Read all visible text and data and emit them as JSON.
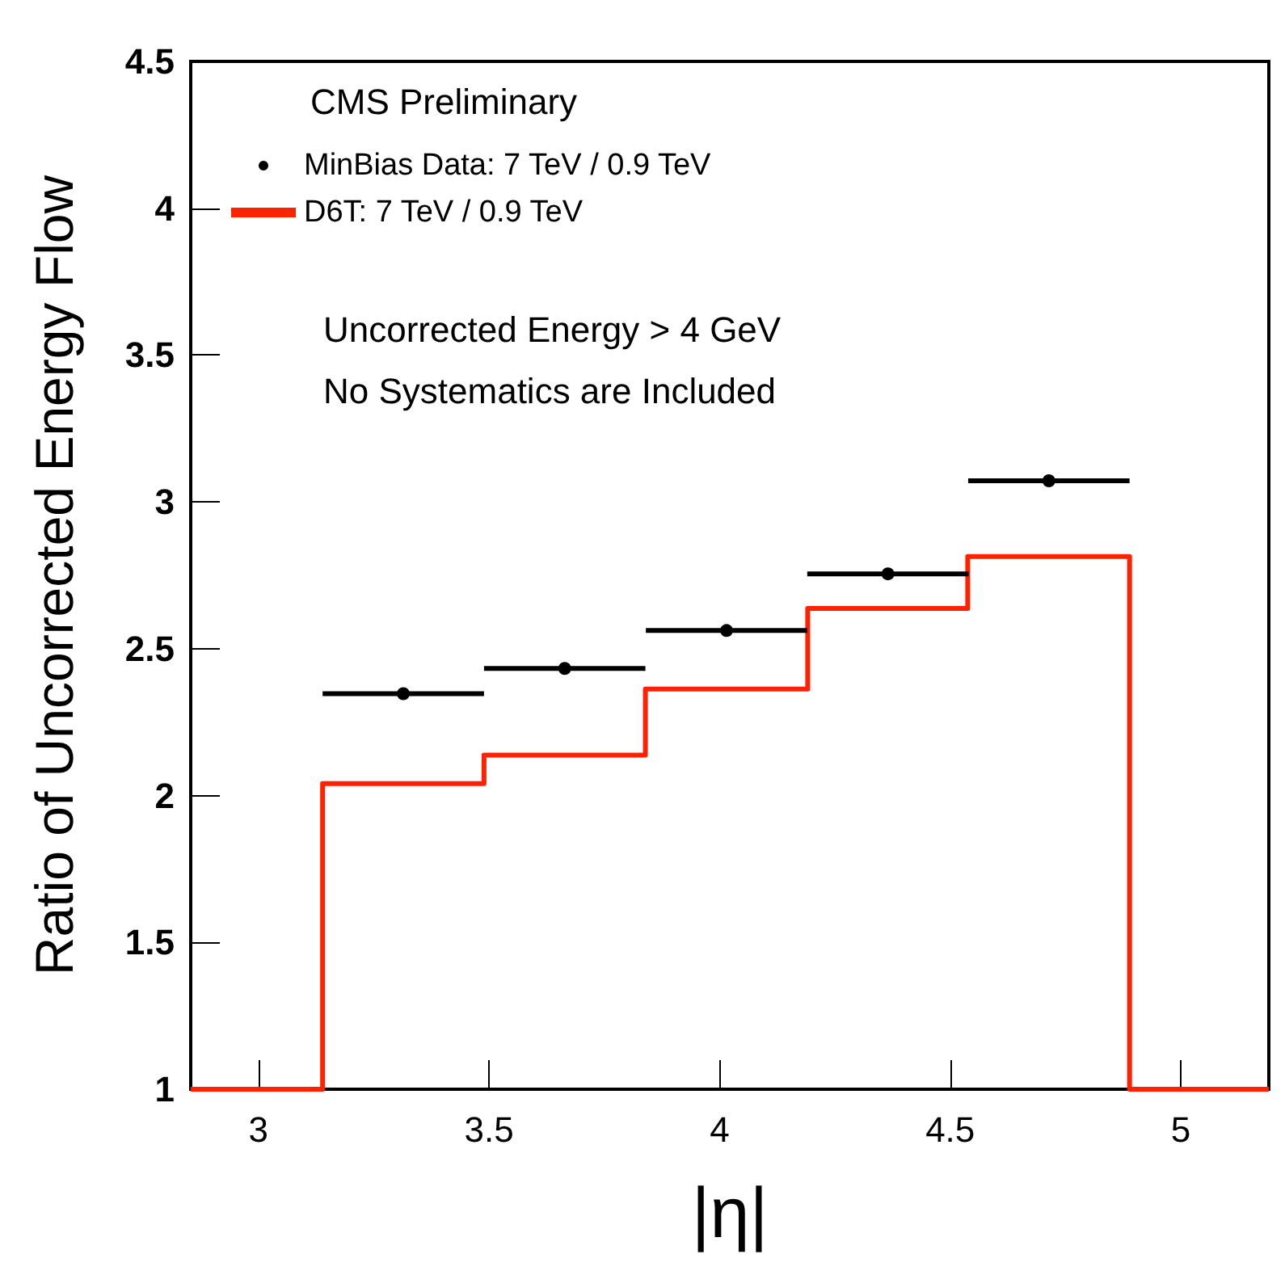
{
  "chart_data": {
    "type": "scatter",
    "xlabel": "|η|",
    "ylabel": "Ratio of Uncorrected Energy Flow",
    "xlim": [
      2.853,
      5.191
    ],
    "xticks": [
      3,
      3.5,
      4,
      4.5,
      5
    ],
    "ylim": [
      1,
      4.5
    ],
    "yticks": [
      1,
      1.5,
      2,
      2.5,
      3,
      3.5,
      4,
      4.5
    ],
    "series": [
      {
        "name": "MinBias Data: 7 TeV / 0.9 TeV",
        "color": "#000000",
        "marker": "circle",
        "x": [
          3.314,
          3.664,
          4.015,
          4.365,
          4.714
        ],
        "values": [
          2.347,
          2.433,
          2.562,
          2.755,
          3.072
        ],
        "xerrors": [
          0.175,
          0.175,
          0.175,
          0.175,
          0.175
        ]
      },
      {
        "name": "D6T: 7 TeV / 0.9 TeV",
        "type": "histogram",
        "color": "#ff2200",
        "bins": [
          2.853,
          3.139,
          3.489,
          3.839,
          4.191,
          4.538,
          4.889,
          5.191
        ],
        "values": [
          1,
          2.041,
          2.138,
          2.363,
          2.637,
          2.814,
          1
        ]
      }
    ],
    "legend": "top left",
    "grid": false,
    "annotations": [
      "CMS Preliminary",
      "Uncorrected Energy > 4 GeV",
      "No Systematics are Included"
    ]
  }
}
